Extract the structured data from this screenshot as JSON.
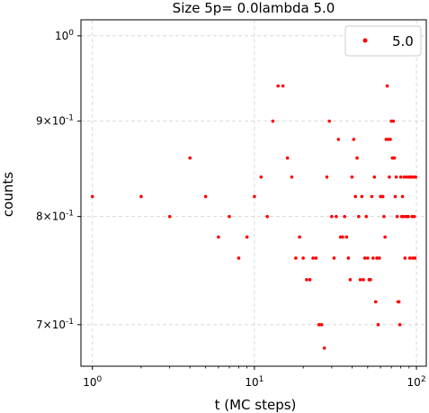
{
  "chart_data": {
    "type": "scatter",
    "title": "Size 5p= 0.0lambda 5.0",
    "xlabel": "t (MC steps)",
    "ylabel": "counts",
    "xscale": "log",
    "yscale": "log",
    "xlim": [
      0.85,
      115
    ],
    "ylim": [
      0.665,
      1.02
    ],
    "grid": true,
    "legend_position": "top-right",
    "marker_color": "#ff0000",
    "x_ticks": [
      {
        "value": 1,
        "label": "10^0"
      },
      {
        "value": 10,
        "label": "10^1"
      },
      {
        "value": 100,
        "label": "10^2"
      }
    ],
    "y_ticks": [
      {
        "value": 1.0,
        "label": "10^0"
      },
      {
        "value": 0.9,
        "label": "9×10^-1"
      },
      {
        "value": 0.8,
        "label": "8×10^-1"
      },
      {
        "value": 0.7,
        "label": "7×10^-1"
      }
    ],
    "series": [
      {
        "name": "5.0",
        "x": [
          1,
          2,
          3,
          4,
          5,
          6,
          7,
          8,
          9,
          10,
          11,
          12,
          13,
          14,
          15,
          16,
          17,
          18,
          19,
          20,
          21,
          22,
          23,
          24,
          25,
          26,
          27,
          28,
          29,
          30,
          31,
          32,
          33,
          34,
          35,
          36,
          37,
          38,
          39,
          40,
          41,
          42,
          43,
          44,
          45,
          46,
          47,
          48,
          49,
          50,
          51,
          52,
          53,
          54,
          55,
          56,
          57,
          58,
          59,
          60,
          61,
          62,
          63,
          64,
          65,
          66,
          67,
          68,
          69,
          70,
          71,
          72,
          73,
          74,
          75,
          76,
          77,
          78,
          79,
          80,
          81,
          82,
          83,
          84,
          85,
          86,
          87,
          88,
          89,
          90,
          91,
          92,
          93,
          94,
          95,
          96,
          97,
          98,
          99
        ],
        "y": [
          0.82,
          0.82,
          0.8,
          0.86,
          0.82,
          0.78,
          0.8,
          0.76,
          0.78,
          0.82,
          0.84,
          0.8,
          0.9,
          0.94,
          0.94,
          0.86,
          0.84,
          0.76,
          0.78,
          0.76,
          0.74,
          0.74,
          0.76,
          0.76,
          0.7,
          0.7,
          0.68,
          0.84,
          0.9,
          0.8,
          0.76,
          0.8,
          0.88,
          0.78,
          0.78,
          0.8,
          0.78,
          0.76,
          0.74,
          0.84,
          0.88,
          0.82,
          0.86,
          0.8,
          0.74,
          0.82,
          0.74,
          0.76,
          0.8,
          0.76,
          0.74,
          0.74,
          0.82,
          0.76,
          0.84,
          0.72,
          0.76,
          0.7,
          0.76,
          0.82,
          0.82,
          0.82,
          0.8,
          0.78,
          0.88,
          0.94,
          0.88,
          0.84,
          0.88,
          0.9,
          0.86,
          0.9,
          0.86,
          0.82,
          0.84,
          0.8,
          0.72,
          0.72,
          0.7,
          0.84,
          0.8,
          0.82,
          0.8,
          0.84,
          0.76,
          0.8,
          0.84,
          0.8,
          0.8,
          0.84,
          0.76,
          0.84,
          0.84,
          0.8,
          0.76,
          0.84,
          0.8,
          0.76,
          0.84
        ]
      }
    ]
  }
}
